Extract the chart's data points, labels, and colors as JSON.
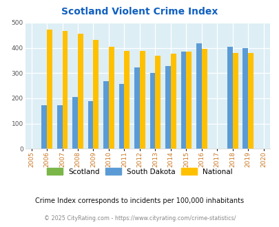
{
  "title": "Scotland Violent Crime Index",
  "years": [
    2005,
    2006,
    2007,
    2008,
    2009,
    2010,
    2011,
    2012,
    2013,
    2014,
    2015,
    2016,
    2017,
    2018,
    2019,
    2020
  ],
  "scotland": [
    0,
    0,
    0,
    0,
    0,
    0,
    0,
    0,
    0,
    0,
    0,
    0,
    0,
    0,
    0,
    0
  ],
  "south_dakota": [
    0,
    172,
    172,
    205,
    190,
    268,
    257,
    322,
    302,
    328,
    385,
    418,
    0,
    405,
    400,
    0
  ],
  "national": [
    0,
    473,
    467,
    456,
    432,
    405,
    387,
    387,
    368,
    376,
    384,
    397,
    0,
    379,
    379,
    0
  ],
  "scotland_color": "#7ab648",
  "south_dakota_color": "#5b9bd5",
  "national_color": "#ffc000",
  "bg_color": "#ddeef5",
  "title_color": "#1060c0",
  "ylim": [
    0,
    500
  ],
  "yticks": [
    0,
    100,
    200,
    300,
    400,
    500
  ],
  "subtitle": "Crime Index corresponds to incidents per 100,000 inhabitants",
  "footer": "© 2025 CityRating.com - https://www.cityrating.com/crime-statistics/",
  "legend_labels": [
    "Scotland",
    "South Dakota",
    "National"
  ],
  "xlim_left": 2004.6,
  "xlim_right": 2020.4
}
